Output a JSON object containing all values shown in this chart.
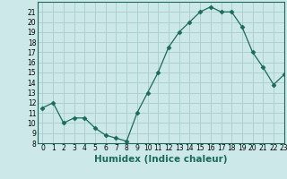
{
  "x": [
    0,
    1,
    2,
    3,
    4,
    5,
    6,
    7,
    8,
    9,
    10,
    11,
    12,
    13,
    14,
    15,
    16,
    17,
    18,
    19,
    20,
    21,
    22,
    23
  ],
  "y": [
    11.5,
    12.0,
    10.0,
    10.5,
    10.5,
    9.5,
    8.8,
    8.5,
    8.2,
    11.0,
    13.0,
    15.0,
    17.5,
    19.0,
    20.0,
    21.0,
    21.5,
    21.0,
    21.0,
    19.5,
    17.0,
    15.5,
    13.8,
    14.8
  ],
  "line_color": "#1a6b5a",
  "marker": "D",
  "marker_size": 2.5,
  "bg_color": "#cce8e8",
  "grid_color": "#aacccc",
  "xlabel": "Humidex (Indice chaleur)",
  "ylim": [
    8,
    22
  ],
  "xlim": [
    -0.5,
    23
  ],
  "yticks": [
    8,
    9,
    10,
    11,
    12,
    13,
    14,
    15,
    16,
    17,
    18,
    19,
    20,
    21
  ],
  "xticks": [
    0,
    1,
    2,
    3,
    4,
    5,
    6,
    7,
    8,
    9,
    10,
    11,
    12,
    13,
    14,
    15,
    16,
    17,
    18,
    19,
    20,
    21,
    22,
    23
  ],
  "tick_fontsize": 5.5,
  "label_fontsize": 7.5
}
